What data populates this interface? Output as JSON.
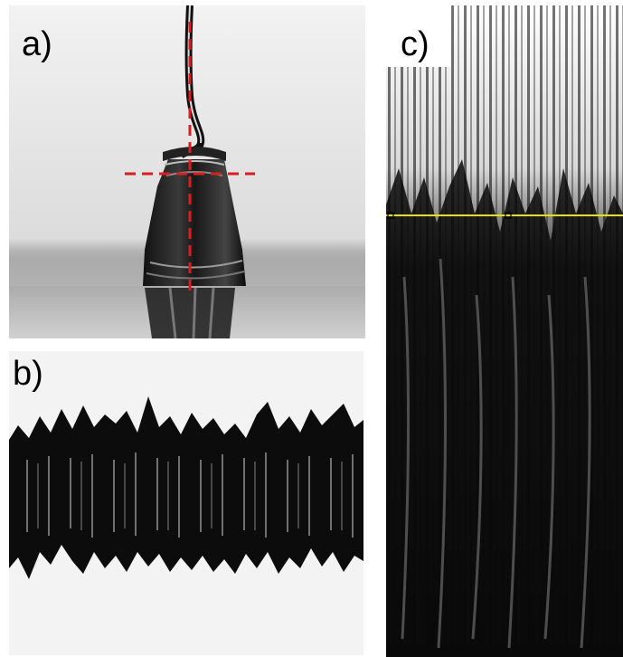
{
  "panels": {
    "a": {
      "label": "a)"
    },
    "b": {
      "label": "b)"
    },
    "c": {
      "label": "c)"
    }
  },
  "colors": {
    "crosshair": "#d42020",
    "marker_line": "#e8e000",
    "ink": "#0a0a0a"
  }
}
